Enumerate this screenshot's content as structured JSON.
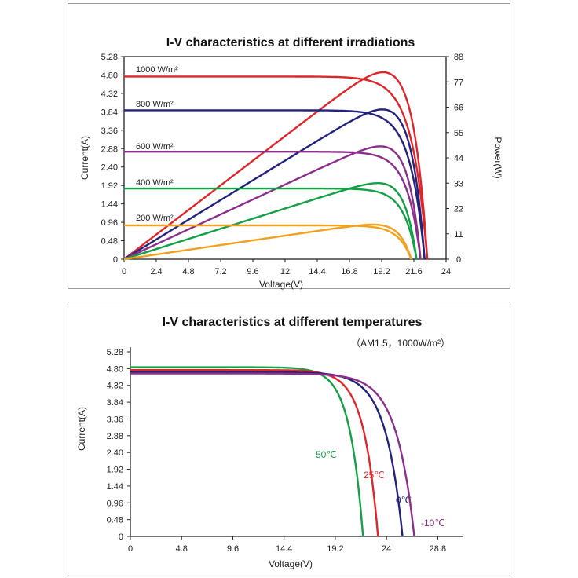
{
  "chart_data": [
    {
      "type": "line",
      "title": "I-V characteristics at different irradiations",
      "xlabel": "Voltage(V)",
      "ylabel": "Current(A)",
      "y2label": "Power(W)",
      "xlim": [
        0,
        24
      ],
      "ylim": [
        0,
        5.28
      ],
      "y2lim": [
        0,
        88
      ],
      "x_ticks": [
        "0",
        "2.4",
        "4.8",
        "7.2",
        "9.6",
        "12",
        "14.4",
        "16.8",
        "19.2",
        "21.6",
        "24"
      ],
      "y_ticks": [
        "0",
        "0.48",
        "0.96",
        "1.44",
        "1.92",
        "2.40",
        "2.88",
        "3.36",
        "3.84",
        "4.32",
        "4.80",
        "5.28"
      ],
      "y2_ticks": [
        "0",
        "11",
        "22",
        "33",
        "44",
        "55",
        "66",
        "77",
        "88"
      ],
      "series": [
        {
          "name": "1000 W/m²",
          "color": "#e0262a",
          "isc": 4.76,
          "imp": 4.45,
          "vmp": 19.0,
          "voc": 22.6,
          "pmax": 81
        },
        {
          "name": "800 W/m²",
          "color": "#23237e",
          "isc": 3.88,
          "imp": 3.55,
          "vmp": 19.1,
          "voc": 22.4,
          "pmax": 65
        },
        {
          "name": "600 W/m²",
          "color": "#8c2f8c",
          "isc": 2.8,
          "imp": 2.55,
          "vmp": 19.1,
          "voc": 22.1,
          "pmax": 49
        },
        {
          "name": "400 W/m²",
          "color": "#14a046",
          "isc": 1.84,
          "imp": 1.7,
          "vmp": 19.0,
          "voc": 21.8,
          "pmax": 33
        },
        {
          "name": "200 W/m²",
          "color": "#f0a21e",
          "isc": 0.88,
          "imp": 0.8,
          "vmp": 18.6,
          "voc": 21.4,
          "pmax": 15
        }
      ]
    },
    {
      "type": "line",
      "title": "I-V characteristics at different temperatures",
      "subtitle": "（AM1.5，1000W/m²）",
      "xlabel": "Voltage(V)",
      "ylabel": "Current(A)",
      "xlim": [
        0,
        31.2
      ],
      "ylim": [
        0,
        5.28
      ],
      "x_ticks": [
        "0",
        "4.8",
        "9.6",
        "14.4",
        "19.2",
        "24",
        "28.8"
      ],
      "y_ticks": [
        "0",
        "0.48",
        "0.96",
        "1.44",
        "1.92",
        "2.40",
        "2.88",
        "3.36",
        "3.84",
        "4.32",
        "4.80",
        "5.28"
      ],
      "series": [
        {
          "name": "50℃",
          "color": "#14a046",
          "isc": 4.84,
          "voc": 21.8,
          "knee": 16.5
        },
        {
          "name": "25℃",
          "color": "#e0262a",
          "isc": 4.76,
          "voc": 23.2,
          "knee": 17.6
        },
        {
          "name": "0℃",
          "color": "#23237e",
          "isc": 4.7,
          "voc": 25.5,
          "knee": 18.8
        },
        {
          "name": "-10℃",
          "color": "#8c2f8c",
          "isc": 4.66,
          "voc": 26.6,
          "knee": 19.5
        }
      ]
    }
  ]
}
